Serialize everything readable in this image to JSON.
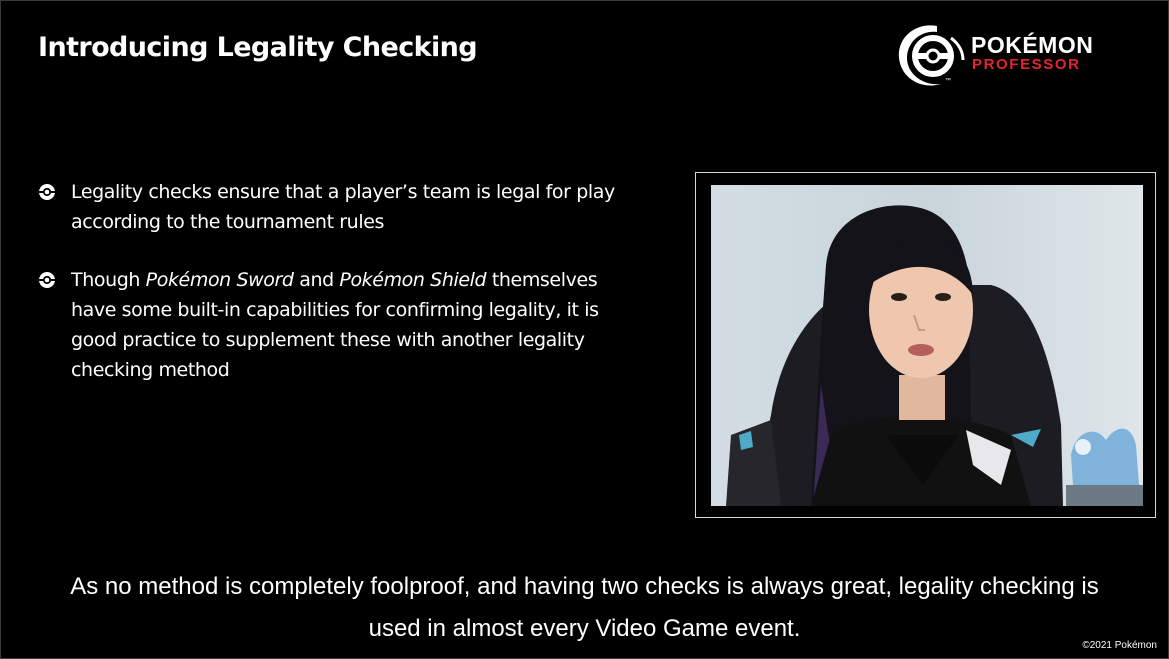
{
  "slide": {
    "title": "Introducing Legality Checking"
  },
  "logo": {
    "line1": "POKÉMON",
    "line2": "PROFESSOR",
    "mark": "™",
    "icon": "poke-ball-swoosh-icon",
    "accent_color": "#e3262e"
  },
  "bullets": [
    {
      "text": "Legality checks ensure that a player’s team is legal for play according to the tournament rules"
    },
    {
      "pre": "Though ",
      "italic1": "Pokémon Sword",
      "mid": " and ",
      "italic2": "Pokémon Shield",
      "post": " themselves have some built-in capabilities for confirming legality, it is good practice to supplement these with another legality checking method"
    }
  ],
  "video": {
    "description_icon": "presenter-webcam-feed"
  },
  "caption": {
    "line1": "As no method is completely foolproof, and having two checks is always great, legality checking is",
    "line2": "used in almost every Video Game event."
  },
  "copyright": "©2021 Pokémon"
}
